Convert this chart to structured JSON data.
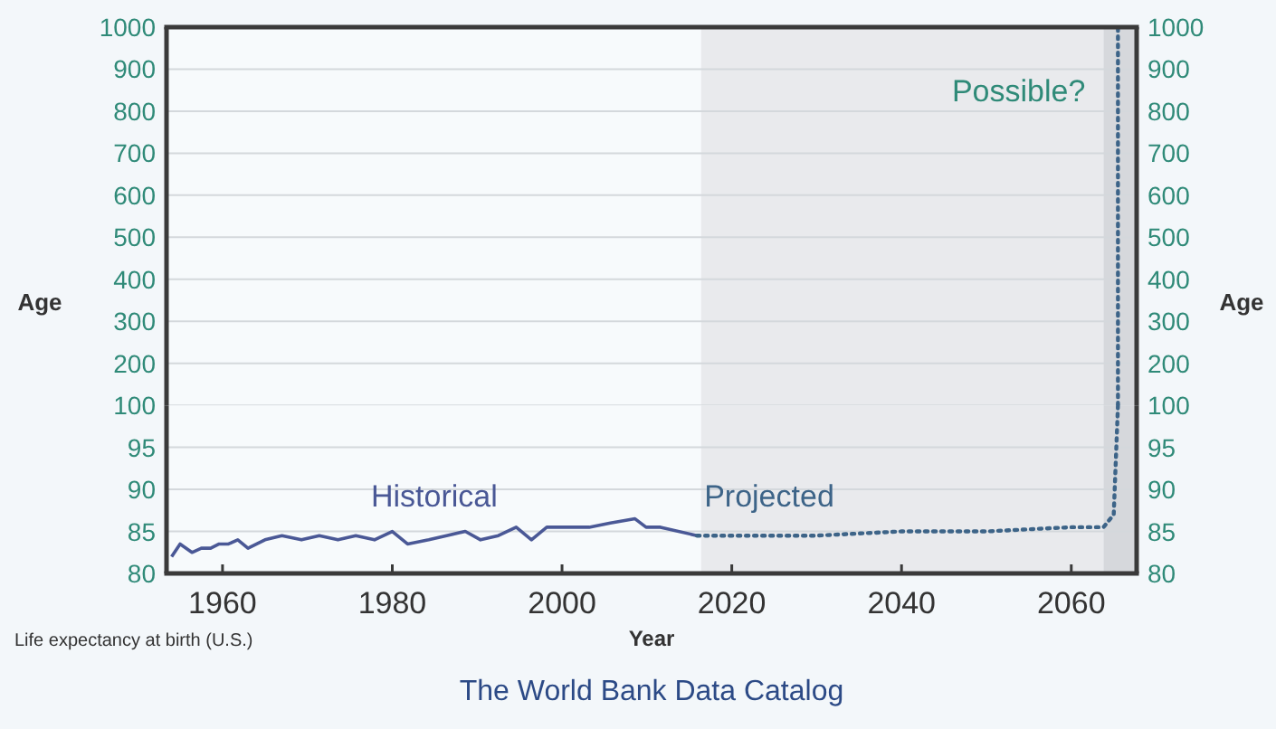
{
  "chart_data": [
    {
      "type": "line",
      "ylabel": "Age",
      "y2label": "Age",
      "tick_labels": "y",
      "xlim": [
        1953.4,
        2067.7
      ],
      "ylim": [
        100,
        1000
      ],
      "yticks": [
        100,
        200,
        300,
        400,
        500,
        600,
        700,
        800,
        900,
        1000
      ],
      "y2lim": [
        100,
        1000
      ],
      "y2ticks": [
        100,
        200,
        300,
        400,
        500,
        600,
        700,
        800,
        900,
        1000
      ],
      "grid": "y",
      "series": [
        {
          "color": "#3d6488",
          "line_style": "dotted",
          "x": [
            2065.5,
            2065.5
          ],
          "values": [
            100,
            1000
          ]
        }
      ],
      "bands": [
        {
          "axis": "x",
          "from": 2016.4,
          "to": 2063.8,
          "color": "#e9eaed"
        },
        {
          "axis": "x",
          "from": 2063.8,
          "to": 2067.7,
          "color": "#d6d8dc"
        }
      ],
      "annotations": [
        {
          "text": "Possible?",
          "x": 2065.5,
          "y": 850
        }
      ]
    },
    {
      "type": "line",
      "xlabel": "Year",
      "xlim": [
        1953.4,
        2067.7
      ],
      "xticks": [
        1960,
        1980,
        2000,
        2020,
        2040,
        2060
      ],
      "ylim": [
        80,
        100
      ],
      "yticks": [
        80,
        85,
        90,
        95
      ],
      "y2lim": [
        80,
        100
      ],
      "y2ticks": [
        80,
        85,
        90,
        95
      ],
      "grid": "y",
      "series": [
        {
          "name": "Historical",
          "color": "#4a5896",
          "line_style": "solid",
          "x": [
            1954,
            1955,
            1956.4,
            1957.5,
            1958.6,
            1959.6,
            1960.7,
            1961.8,
            1963,
            1965,
            1967,
            1969.3,
            1971.4,
            1973.6,
            1975.7,
            1977.9,
            1980,
            1981.8,
            1984.3,
            1986.4,
            1988.6,
            1990.4,
            1992.5,
            1994.6,
            1996.4,
            1998.2,
            2000.4,
            2003.2,
            2005.7,
            2008.6,
            2009.9,
            2011.6,
            2015.9
          ],
          "values": [
            82,
            83.5,
            82.5,
            83,
            83,
            83.5,
            83.5,
            84,
            83,
            84,
            84.5,
            84,
            84.5,
            84,
            84.5,
            84,
            85,
            83.5,
            84,
            84.5,
            85,
            84,
            84.5,
            85.5,
            84,
            85.5,
            85.5,
            85.5,
            86,
            86.5,
            85.5,
            85.5,
            84.5
          ]
        },
        {
          "name": "Projected",
          "color": "#3d6488",
          "line_style": "dotted",
          "x": [
            2015.9,
            2020,
            2030,
            2040,
            2050,
            2060,
            2063.8,
            2065,
            2065.5
          ],
          "values": [
            84.5,
            84.5,
            84.5,
            85,
            85,
            85.5,
            85.5,
            87,
            100
          ]
        }
      ],
      "bands": [
        {
          "axis": "x",
          "from": 2016.4,
          "to": 2063.8,
          "color": "#e9eaed"
        },
        {
          "axis": "x",
          "from": 2063.8,
          "to": 2067.7,
          "color": "#d6d8dc"
        }
      ],
      "annotations": [
        "Life expectancy at birth (U.S.)",
        "The World Bank Data Catalog"
      ]
    }
  ]
}
